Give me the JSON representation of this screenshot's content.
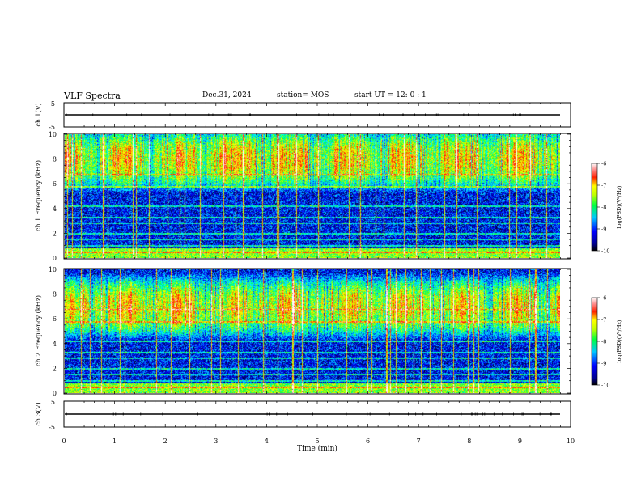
{
  "header": {
    "title": "VLF Spectra",
    "date": "Dec.31, 2024",
    "station": "station= MOS",
    "start_ut": "start  UT =   12: 0  : 1"
  },
  "chart_data": [
    {
      "type": "line",
      "panel": "ch1-waveform",
      "ylabel": "ch.1(V)",
      "ylim": [
        -5,
        5
      ],
      "yticks": [
        5,
        -5
      ],
      "level": 0
    },
    {
      "type": "heatmap",
      "panel": "ch1-spectrogram",
      "ylabel": "ch.1 Frequency (kHz)",
      "ylim": [
        0,
        10
      ],
      "yticks": [
        0,
        2,
        4,
        6,
        8,
        10
      ],
      "main_band_khz": [
        6.5,
        9.5
      ],
      "colorbar": {
        "label": "log(PSD)(V²/Hz)",
        "range": [
          -10,
          -6
        ],
        "ticks": [
          -6,
          -7,
          -8,
          -9,
          -10
        ]
      }
    },
    {
      "type": "heatmap",
      "panel": "ch2-spectrogram",
      "ylabel": "ch.2 Frequency (kHz)",
      "ylim": [
        0,
        10
      ],
      "yticks": [
        0,
        2,
        4,
        6,
        8,
        10
      ],
      "main_band_khz": [
        5.5,
        8.5
      ],
      "colorbar": {
        "label": "log(PSD)(V²/Hz)",
        "range": [
          -10,
          -6
        ],
        "ticks": [
          -6,
          -7,
          -8,
          -9,
          -10
        ]
      }
    },
    {
      "type": "line",
      "panel": "ch3-waveform",
      "ylabel": "ch.3(V)",
      "ylim": [
        -5,
        5
      ],
      "yticks": [
        5,
        -5
      ],
      "level": 0
    }
  ],
  "xaxis": {
    "label": "Time (min)",
    "xlim": [
      0,
      10
    ],
    "ticks": [
      "0",
      "1",
      "2",
      "3",
      "4",
      "5",
      "6",
      "7",
      "8",
      "9",
      "10"
    ],
    "data_end": 9.8
  },
  "colors": {
    "colormap": [
      "#000080",
      "#0000ff",
      "#00a0ff",
      "#00ffff",
      "#00ff60",
      "#a0ff00",
      "#ffff00",
      "#ff8000",
      "#ff0000",
      "#ffffff"
    ]
  }
}
